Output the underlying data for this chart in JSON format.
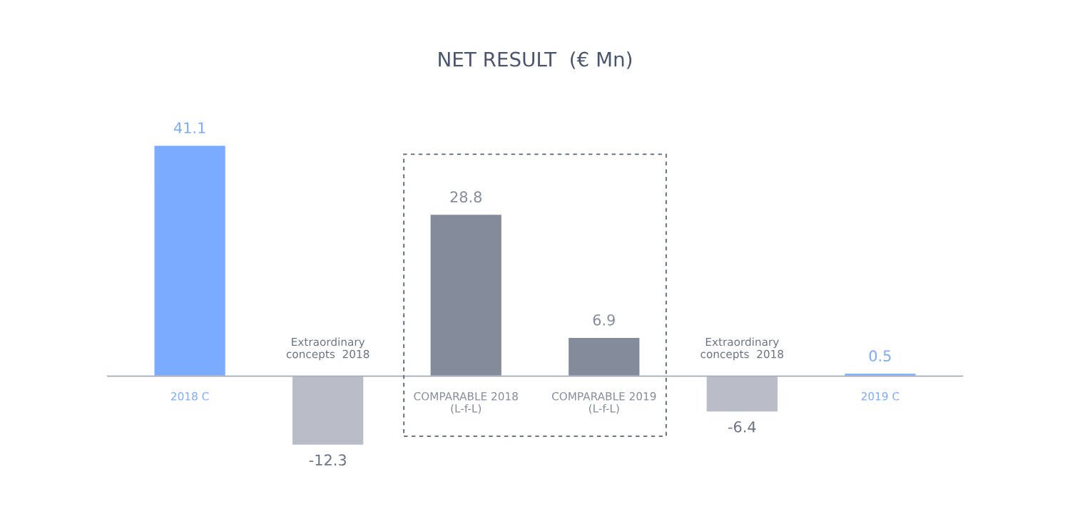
{
  "chart_data": {
    "type": "bar",
    "title": "NET RESULT  (€ Mn)",
    "categories": [
      "2018 C",
      "Extraordinary\nconcepts  2018",
      "COMPARABLE 2018\n(L-f-L)",
      "COMPARABLE 2019\n(L-f-L)",
      "Extraordinary\nconcepts  2018",
      "2019 C"
    ],
    "values": [
      41.1,
      -12.3,
      28.8,
      6.9,
      -6.4,
      0.5
    ],
    "colors": [
      "#7aabff",
      "#b8bdc8",
      "#848c9c",
      "#848c9c",
      "#b8bdc8",
      "#7aabff"
    ],
    "data_labels": true
  }
}
